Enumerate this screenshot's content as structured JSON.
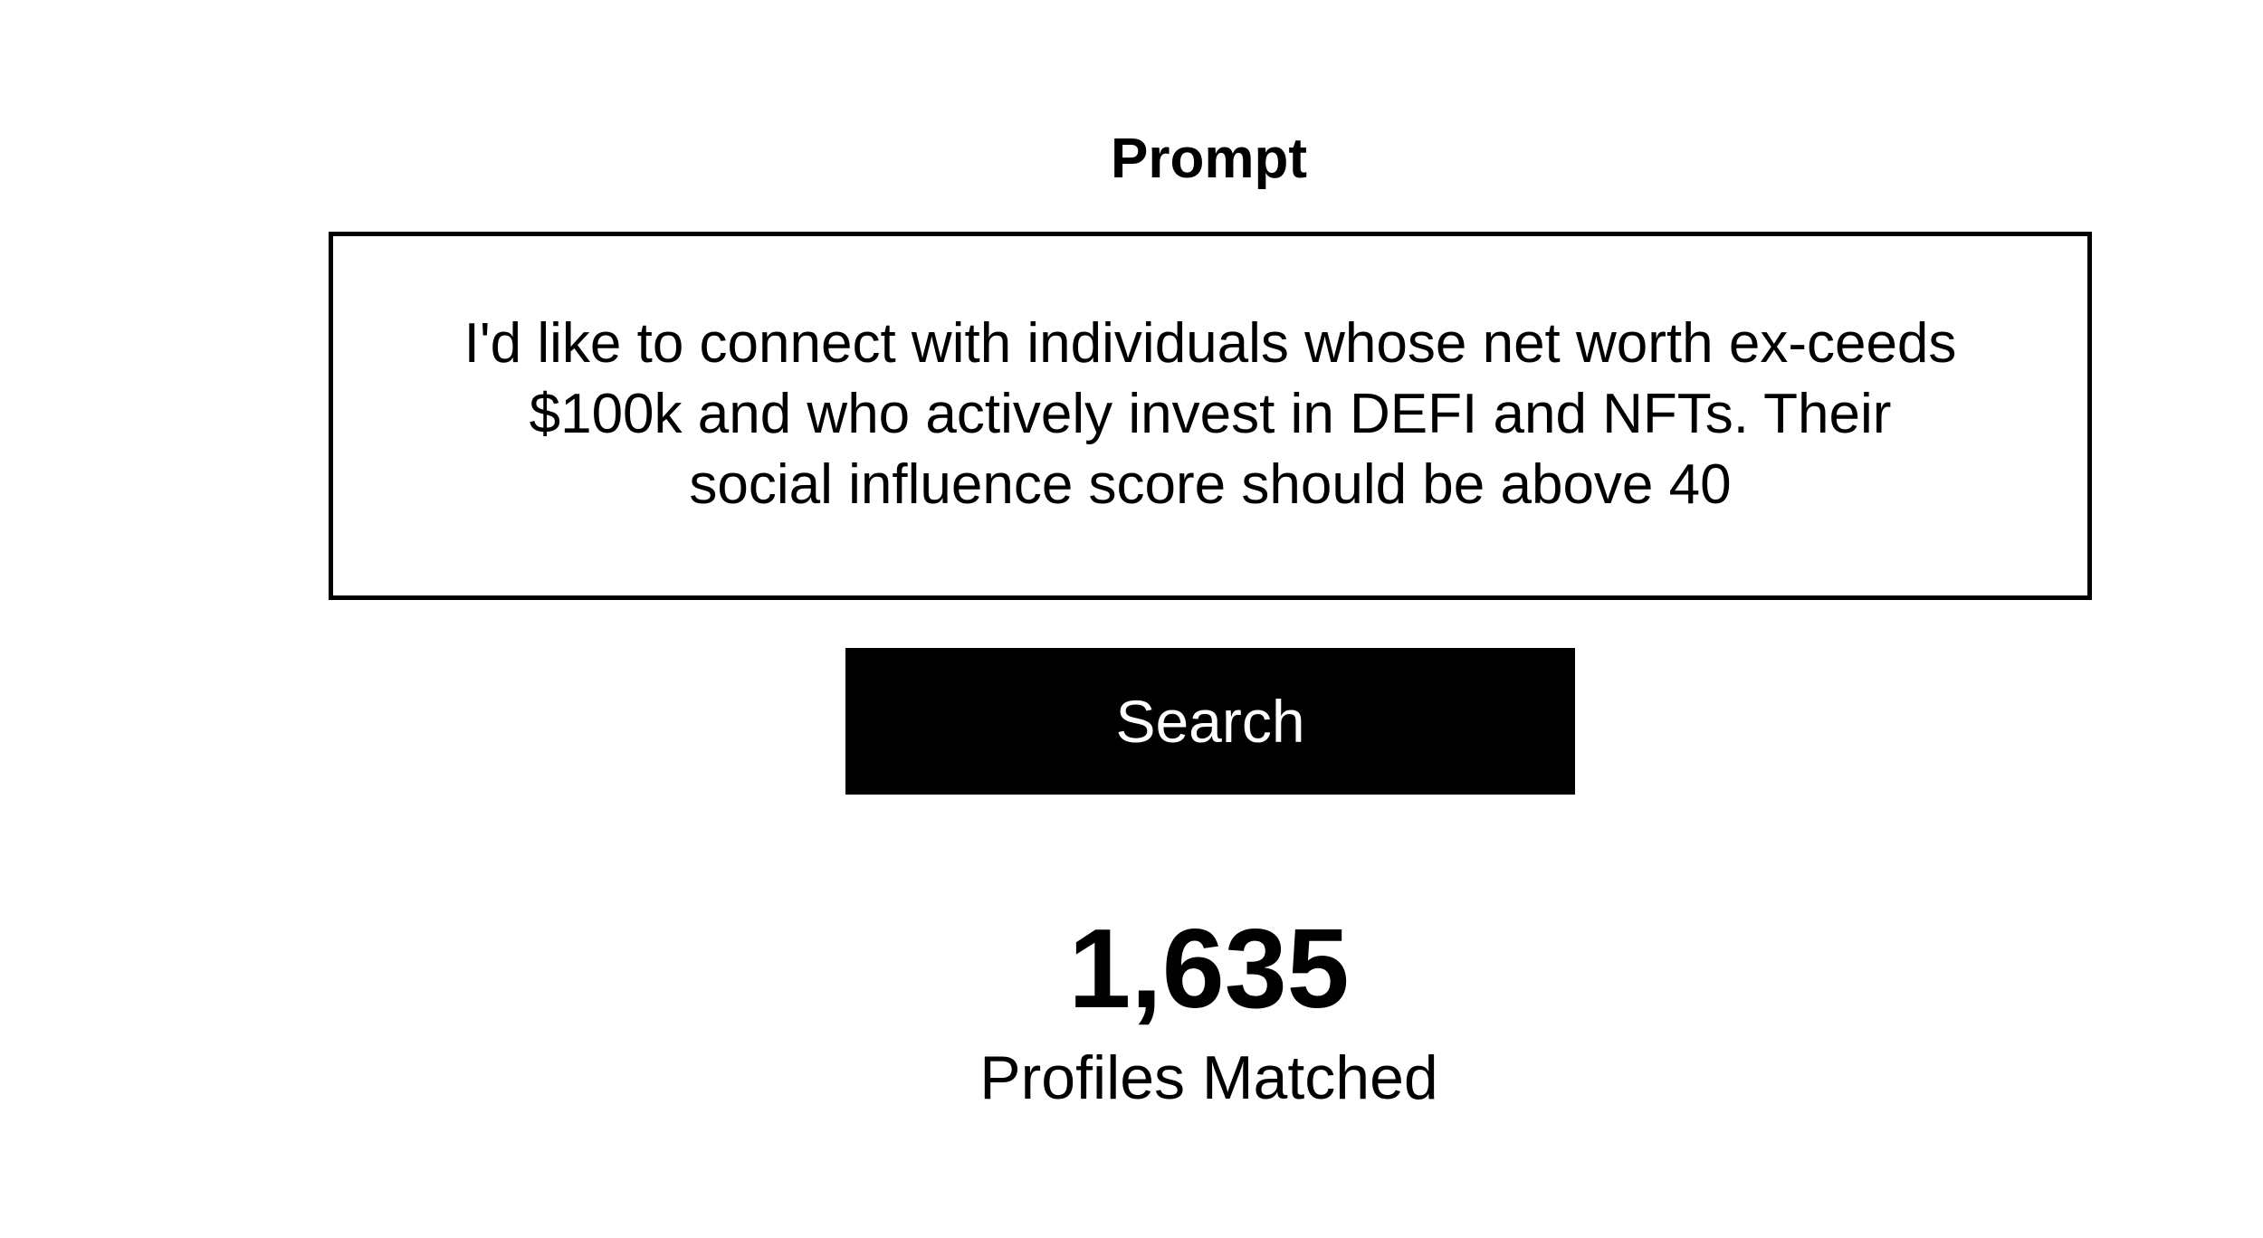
{
  "prompt": {
    "heading": "Prompt",
    "text": "I'd like to connect with individuals whose net worth ex-ceeds $100k and who actively invest in DEFI and NFTs. Their social influence score should be above 40"
  },
  "search": {
    "button_label": "Search"
  },
  "results": {
    "count": "1,635",
    "label": "Profiles Matched"
  },
  "colors": {
    "background": "#ffffff",
    "text": "#000000",
    "button_background": "#000000",
    "button_text": "#ffffff"
  }
}
